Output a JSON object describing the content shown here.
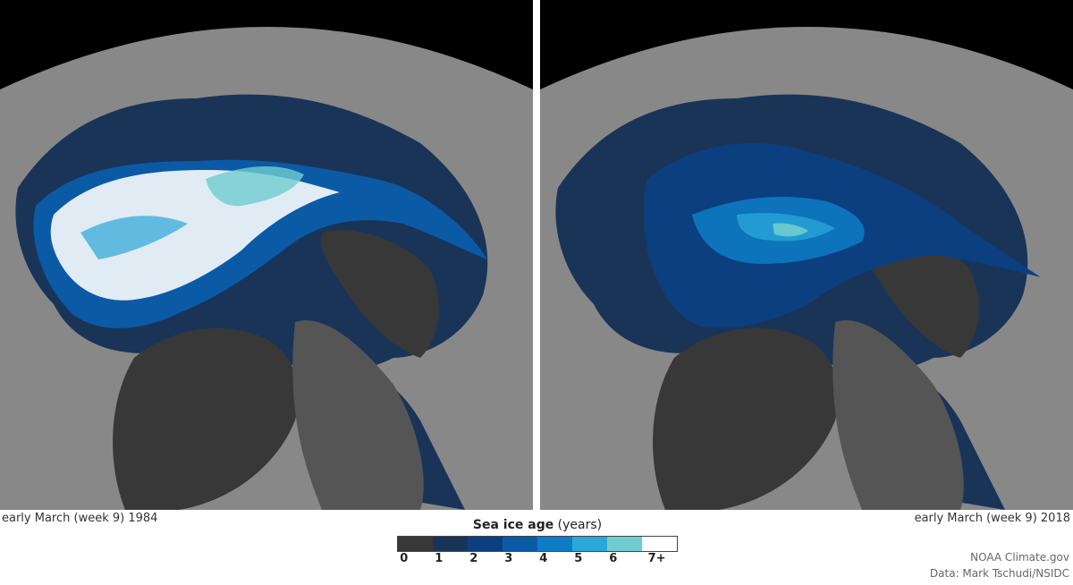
{
  "maps": [
    {
      "caption": "early March (week 9) 1984",
      "year": 1984
    },
    {
      "caption": "early March (week 9) 2018",
      "year": 2018
    }
  ],
  "legend": {
    "title_bold": "Sea ice age",
    "title_unit": "(years)",
    "ticks": [
      "0",
      "1",
      "2",
      "3",
      "4",
      "5",
      "6",
      "7+"
    ],
    "colors": [
      "#383838",
      "#1a3458",
      "#0c3f80",
      "#0b5aa6",
      "#0e7cc4",
      "#2ba7d8",
      "#6fcdcf",
      "#ffffff"
    ]
  },
  "credits": {
    "line1": "NOAA Climate.gov",
    "line2": "Data: Mark Tschudi/NSIDC"
  }
}
